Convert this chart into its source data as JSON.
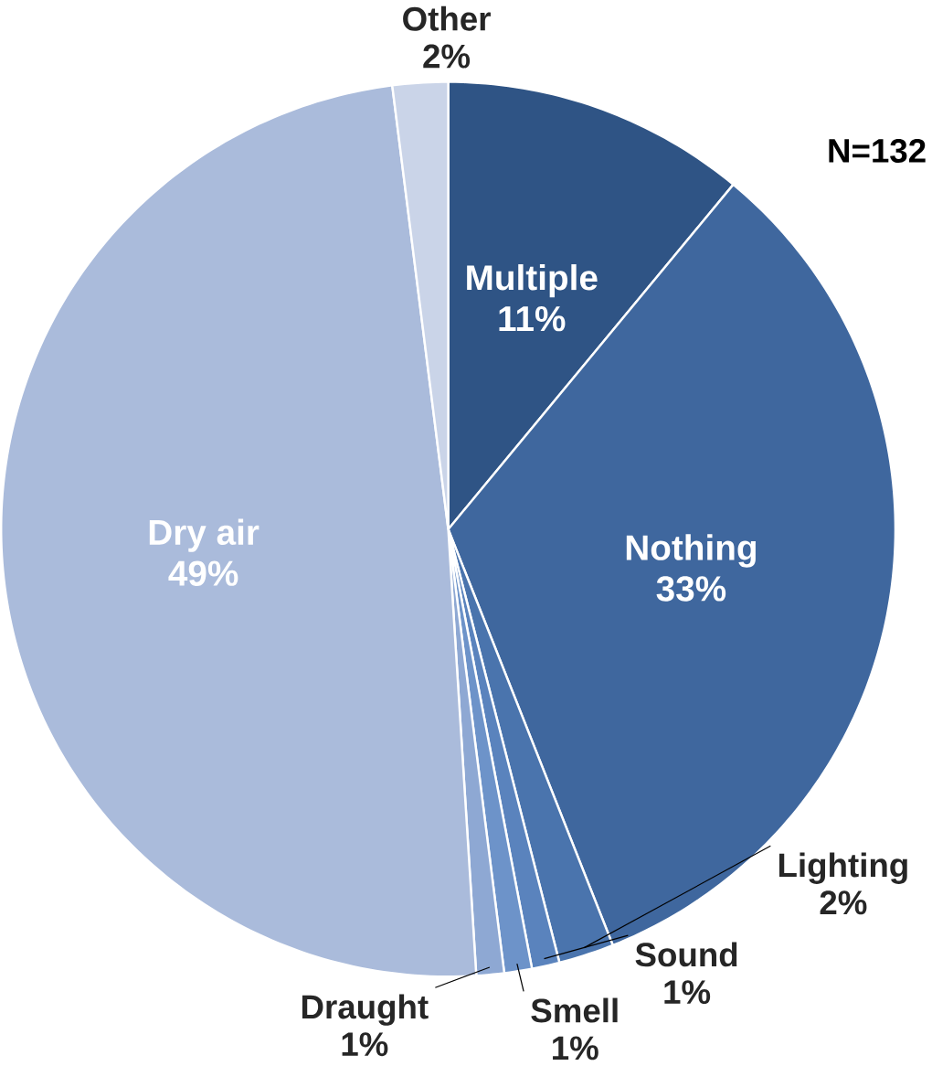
{
  "chart_data": {
    "type": "pie",
    "categories": [
      "Multiple",
      "Nothing",
      "Lighting",
      "Sound",
      "Smell",
      "Draught",
      "Dry air",
      "Other"
    ],
    "values": [
      11,
      33,
      2,
      1,
      1,
      1,
      49,
      2
    ],
    "value_labels": [
      "11%",
      "33%",
      "2%",
      "1%",
      "1%",
      "1%",
      "49%",
      "2%"
    ],
    "colors": [
      "#2f5485",
      "#3f679e",
      "#4a74ad",
      "#5a83bd",
      "#6d93c9",
      "#8ea8d3",
      "#aabbdb",
      "#cad4e8"
    ],
    "annotations": [
      "N=132"
    ]
  }
}
